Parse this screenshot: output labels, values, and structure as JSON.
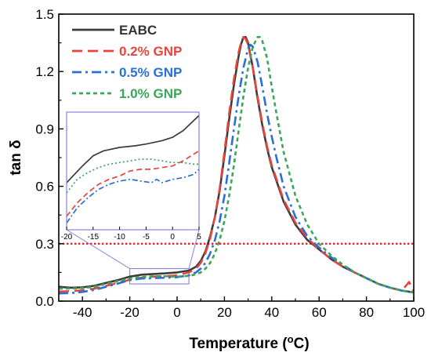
{
  "chart_data": {
    "type": "line",
    "xlabel": "Temperature (",
    "xlabel_sup": "o",
    "xlabel_end": "C)",
    "ylabel": "tan δ",
    "xlim": [
      -50,
      100
    ],
    "ylim": [
      0,
      1.5
    ],
    "xticks": [
      -40,
      -20,
      0,
      20,
      40,
      60,
      80,
      100
    ],
    "yticks": [
      0.0,
      0.3,
      0.6,
      0.9,
      1.2,
      1.5
    ],
    "ytick_labels": [
      "0.0",
      "0.3",
      "0.6",
      "0.9",
      "1.2",
      "1.5"
    ],
    "legend_position": "top-left",
    "reference_line": {
      "y": 0.3,
      "color": "#e8221c",
      "style": "dotted"
    },
    "series": [
      {
        "name": "EABC",
        "color": "#3c3c3c",
        "dash": "solid",
        "x": [
          -50,
          -45,
          -40,
          -35,
          -30,
          -25,
          -20,
          -15,
          -10,
          -5,
          0,
          5,
          8,
          10,
          12,
          14,
          16,
          18,
          20,
          22,
          24,
          26,
          27,
          28,
          29,
          30,
          32,
          34,
          36,
          38,
          40,
          45,
          50,
          55,
          60,
          65,
          70,
          75,
          80,
          85,
          90,
          95,
          100
        ],
        "y": [
          0.075,
          0.07,
          0.072,
          0.08,
          0.095,
          0.11,
          0.128,
          0.138,
          0.142,
          0.145,
          0.15,
          0.16,
          0.18,
          0.21,
          0.26,
          0.34,
          0.44,
          0.58,
          0.76,
          0.95,
          1.13,
          1.28,
          1.34,
          1.38,
          1.38,
          1.35,
          1.22,
          1.06,
          0.92,
          0.8,
          0.7,
          0.52,
          0.4,
          0.32,
          0.27,
          0.22,
          0.18,
          0.15,
          0.12,
          0.09,
          0.07,
          0.055,
          0.045
        ]
      },
      {
        "name": "0.2% GNP",
        "color": "#e8443c",
        "dash": "long-dash",
        "x": [
          -50,
          -45,
          -40,
          -35,
          -30,
          -25,
          -20,
          -15,
          -10,
          -5,
          0,
          5,
          8,
          10,
          12,
          14,
          16,
          18,
          20,
          22,
          24,
          26,
          27,
          28,
          29,
          30,
          32,
          34,
          36,
          38,
          40,
          45,
          50,
          55,
          60,
          65,
          70,
          75,
          80,
          85,
          90,
          95,
          98,
          100
        ],
        "y": [
          0.05,
          0.052,
          0.056,
          0.065,
          0.08,
          0.095,
          0.112,
          0.122,
          0.128,
          0.13,
          0.135,
          0.15,
          0.17,
          0.2,
          0.25,
          0.33,
          0.44,
          0.59,
          0.78,
          0.98,
          1.16,
          1.3,
          1.35,
          1.38,
          1.37,
          1.34,
          1.22,
          1.07,
          0.93,
          0.81,
          0.71,
          0.53,
          0.41,
          0.33,
          0.27,
          0.22,
          0.18,
          0.15,
          0.12,
          0.09,
          0.07,
          0.055,
          0.1,
          0.05
        ]
      },
      {
        "name": "0.5% GNP",
        "color": "#2a6fd6",
        "dash": "dash-dot",
        "x": [
          -50,
          -45,
          -40,
          -35,
          -30,
          -25,
          -20,
          -15,
          -10,
          -5,
          0,
          5,
          8,
          10,
          12,
          14,
          16,
          18,
          20,
          22,
          24,
          26,
          28,
          30,
          31,
          32,
          34,
          36,
          38,
          40,
          42,
          45,
          50,
          55,
          60,
          65,
          70,
          75,
          80,
          85,
          90,
          95,
          100
        ],
        "y": [
          0.04,
          0.042,
          0.048,
          0.058,
          0.075,
          0.092,
          0.11,
          0.118,
          0.12,
          0.122,
          0.125,
          0.135,
          0.15,
          0.17,
          0.2,
          0.25,
          0.32,
          0.42,
          0.55,
          0.72,
          0.9,
          1.07,
          1.22,
          1.32,
          1.34,
          1.33,
          1.25,
          1.12,
          0.98,
          0.86,
          0.75,
          0.6,
          0.44,
          0.34,
          0.28,
          0.23,
          0.19,
          0.15,
          0.12,
          0.09,
          0.07,
          0.055,
          0.045
        ]
      },
      {
        "name": "1.0% GNP",
        "color": "#3aa65a",
        "dash": "short-dash",
        "x": [
          -50,
          -45,
          -40,
          -35,
          -30,
          -25,
          -20,
          -15,
          -10,
          -5,
          0,
          5,
          8,
          10,
          12,
          14,
          16,
          18,
          20,
          22,
          24,
          26,
          28,
          30,
          32,
          34,
          35,
          36,
          38,
          40,
          42,
          45,
          50,
          55,
          60,
          65,
          70,
          75,
          80,
          85,
          90,
          95,
          100
        ],
        "y": [
          0.065,
          0.066,
          0.068,
          0.075,
          0.09,
          0.105,
          0.118,
          0.126,
          0.13,
          0.13,
          0.128,
          0.132,
          0.14,
          0.15,
          0.17,
          0.2,
          0.25,
          0.32,
          0.42,
          0.55,
          0.71,
          0.89,
          1.07,
          1.22,
          1.33,
          1.38,
          1.38,
          1.36,
          1.27,
          1.12,
          0.98,
          0.78,
          0.55,
          0.4,
          0.3,
          0.24,
          0.19,
          0.15,
          0.12,
          0.09,
          0.07,
          0.055,
          0.045
        ]
      }
    ],
    "inset": {
      "xlim": [
        -20,
        5
      ],
      "xticks": [
        -20,
        -15,
        -10,
        -5,
        0,
        5
      ],
      "zoom_region": {
        "x": [
          -20,
          5
        ],
        "y": [
          0.09,
          0.17
        ]
      },
      "series": [
        {
          "name": "EABC",
          "x": [
            -20,
            -17,
            -15,
            -13,
            -10,
            -7,
            -5,
            -2,
            0,
            2,
            4,
            5
          ],
          "y": [
            0.118,
            0.128,
            0.134,
            0.137,
            0.139,
            0.14,
            0.141,
            0.143,
            0.145,
            0.149,
            0.155,
            0.158
          ]
        },
        {
          "name": "0.2% GNP",
          "x": [
            -20,
            -18,
            -16,
            -14,
            -12,
            -10,
            -8,
            -6,
            -4,
            -2,
            0,
            2,
            4,
            5
          ],
          "y": [
            0.098,
            0.106,
            0.112,
            0.117,
            0.12,
            0.122,
            0.125,
            0.126,
            0.126,
            0.127,
            0.128,
            0.131,
            0.135,
            0.137
          ]
        },
        {
          "name": "0.5% GNP",
          "x": [
            -20,
            -18,
            -16,
            -14,
            -12,
            -10,
            -8,
            -6,
            -4,
            -3,
            -2,
            0,
            2,
            4,
            5
          ],
          "y": [
            0.094,
            0.103,
            0.109,
            0.114,
            0.117,
            0.119,
            0.12,
            0.119,
            0.118,
            0.12,
            0.118,
            0.12,
            0.121,
            0.123,
            0.126
          ]
        },
        {
          "name": "1.0% GNP",
          "x": [
            -20,
            -18,
            -16,
            -14,
            -12,
            -10,
            -8,
            -6,
            -4,
            -2,
            0,
            2,
            4,
            5
          ],
          "y": [
            0.112,
            0.12,
            0.124,
            0.127,
            0.129,
            0.13,
            0.131,
            0.132,
            0.132,
            0.131,
            0.13,
            0.13,
            0.129,
            0.129
          ]
        }
      ]
    }
  }
}
